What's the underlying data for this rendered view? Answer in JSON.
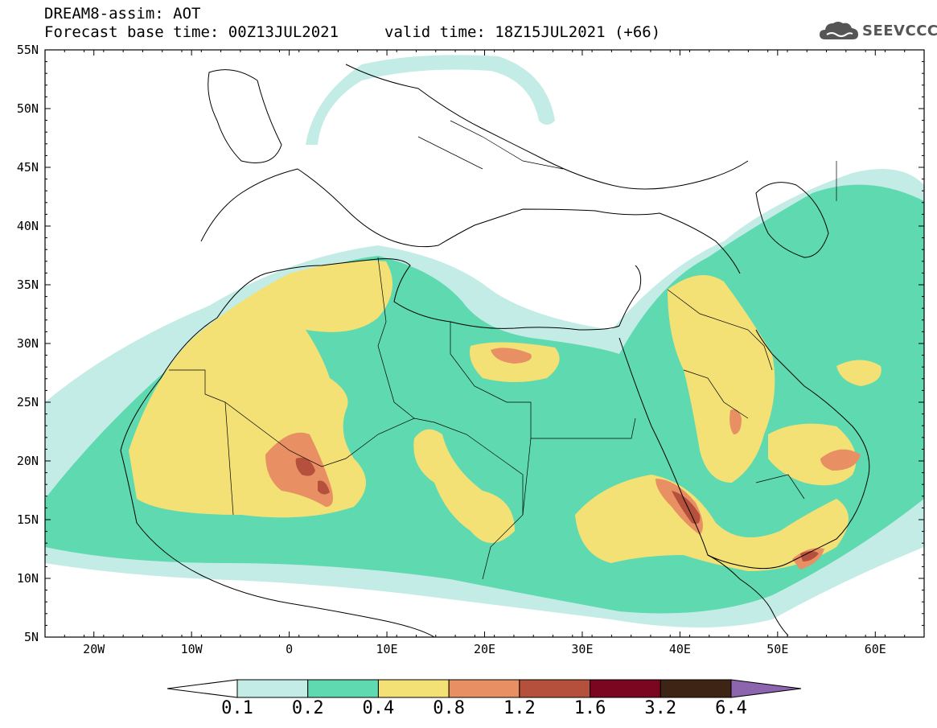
{
  "header": {
    "title": "DREAM8-assim: AOT",
    "base_time": "Forecast base time: 00Z13JUL2021",
    "valid_time": "valid time: 18Z15JUL2021 (+66)",
    "logo_text": "SEEVCCC"
  },
  "map": {
    "lat_labels": [
      "55N",
      "50N",
      "45N",
      "40N",
      "35N",
      "30N",
      "25N",
      "20N",
      "15N",
      "10N",
      "5N"
    ],
    "lon_labels": [
      "20W",
      "10W",
      "0",
      "10E",
      "20E",
      "30E",
      "40E",
      "50E",
      "60E"
    ],
    "lon_range": [
      -25,
      65
    ],
    "lat_range": [
      5,
      55
    ]
  },
  "colorbar": {
    "labels": [
      "0.1",
      "0.2",
      "0.4",
      "0.8",
      "1.2",
      "1.6",
      "3.2",
      "6.4"
    ],
    "colors": [
      "#ffffff",
      "#c3ece6",
      "#5ed9b0",
      "#f3e176",
      "#e88f63",
      "#b4503c",
      "#7b0620",
      "#3d2414",
      "#8d64ae"
    ]
  }
}
